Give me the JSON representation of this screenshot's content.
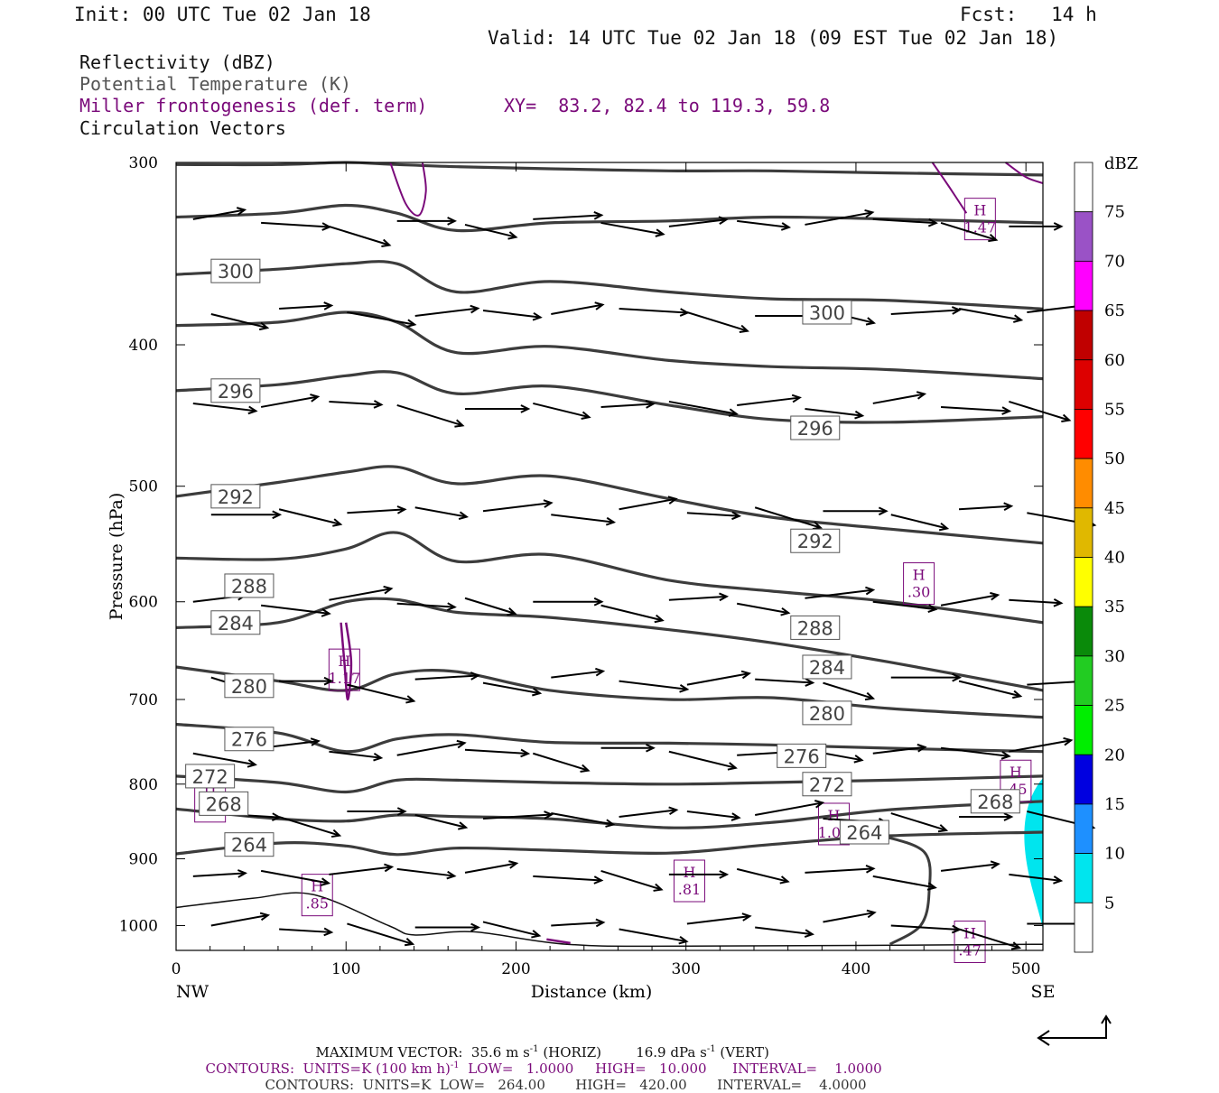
{
  "header": {
    "init": "Init: 00 UTC Tue 02 Jan 18",
    "fcst": "Fcst:   14 h",
    "valid": "Valid: 14 UTC Tue 02 Jan 18 (09 EST Tue 02 Jan 18)",
    "field1": "Reflectivity (dBZ)",
    "field2": "Potential Temperature (K)",
    "field3": "Miller frontogenesis (def. term)",
    "xy": "XY=  83.2, 82.4 to 119.3, 59.8",
    "field4": "Circulation Vectors"
  },
  "chart_data": {
    "type": "cross-section",
    "xlabel": "Distance (km)",
    "ylabel": "Pressure (hPa)",
    "xlim": [
      0,
      510
    ],
    "ylim": [
      1040,
      300
    ],
    "y_scale": "log-pressure",
    "x_ticks": [
      "0",
      "100",
      "200",
      "300",
      "400",
      "500"
    ],
    "y_ticks": [
      "300",
      "400",
      "500",
      "600",
      "700",
      "800",
      "900",
      "1000"
    ],
    "x_ends": [
      "NW",
      "SE"
    ],
    "theta_contour_labels": [
      {
        "value": "300",
        "x": 35,
        "p": 356
      },
      {
        "value": "300",
        "x": 383,
        "p": 380
      },
      {
        "value": "296",
        "x": 35,
        "p": 430
      },
      {
        "value": "296",
        "x": 376,
        "p": 456
      },
      {
        "value": "292",
        "x": 35,
        "p": 508
      },
      {
        "value": "292",
        "x": 376,
        "p": 545
      },
      {
        "value": "288",
        "x": 43,
        "p": 585
      },
      {
        "value": "288",
        "x": 376,
        "p": 625
      },
      {
        "value": "284",
        "x": 35,
        "p": 620
      },
      {
        "value": "284",
        "x": 383,
        "p": 665
      },
      {
        "value": "280",
        "x": 43,
        "p": 685
      },
      {
        "value": "280",
        "x": 383,
        "p": 715
      },
      {
        "value": "276",
        "x": 43,
        "p": 745
      },
      {
        "value": "276",
        "x": 368,
        "p": 765
      },
      {
        "value": "272",
        "x": 20,
        "p": 790
      },
      {
        "value": "272",
        "x": 383,
        "p": 800
      },
      {
        "value": "268",
        "x": 28,
        "p": 825
      },
      {
        "value": "268",
        "x": 482,
        "p": 822
      },
      {
        "value": "264",
        "x": 43,
        "p": 880
      },
      {
        "value": "264",
        "x": 405,
        "p": 863
      }
    ],
    "frontogenesis_maxima": [
      {
        "label": "H",
        "value": "1.47",
        "x": 473,
        "p": 328
      },
      {
        "label": "H",
        "value": ".30",
        "x": 437,
        "p": 583
      },
      {
        "label": "H",
        "value": "1.17",
        "x": 99,
        "p": 668
      },
      {
        "label": "H",
        "value": ".45",
        "x": 494,
        "p": 796
      },
      {
        "label": "H",
        "value": ".40",
        "x": 20,
        "p": 822
      },
      {
        "label": "H",
        "value": "1.09",
        "x": 387,
        "p": 852
      },
      {
        "label": "H",
        "value": ".81",
        "x": 302,
        "p": 932
      },
      {
        "label": "H",
        "value": ".85",
        "x": 83,
        "p": 953
      },
      {
        "label": "H",
        "value": ".47",
        "x": 467,
        "p": 1026
      }
    ],
    "theta_lines": [
      {
        "x": [
          0,
          60,
          100,
          130,
          165,
          220,
          290,
          350,
          420,
          510
        ],
        "p": [
          301,
          301,
          300,
          301,
          302,
          303,
          304,
          304,
          305,
          306
        ]
      },
      {
        "x": [
          0,
          60,
          100,
          130,
          165,
          220,
          290,
          350,
          420,
          510
        ],
        "p": [
          327,
          325,
          321,
          325,
          334,
          330,
          329,
          327,
          328,
          330
        ]
      },
      {
        "x": [
          0,
          60,
          100,
          130,
          165,
          220,
          290,
          350,
          420,
          510
        ],
        "p": [
          358,
          355,
          352,
          352,
          368,
          362,
          368,
          372,
          373,
          378
        ]
      },
      {
        "x": [
          0,
          60,
          100,
          130,
          165,
          220,
          290,
          350,
          420,
          510
        ],
        "p": [
          388,
          386,
          380,
          386,
          405,
          401,
          410,
          414,
          416,
          422
        ]
      },
      {
        "x": [
          0,
          60,
          100,
          130,
          165,
          220,
          290,
          350,
          420,
          510
        ],
        "p": [
          430,
          426,
          420,
          418,
          432,
          427,
          440,
          450,
          452,
          448
        ]
      },
      {
        "x": [
          0,
          60,
          100,
          130,
          165,
          220,
          290,
          350,
          420,
          510
        ],
        "p": [
          508,
          497,
          489,
          485,
          498,
          492,
          510,
          525,
          535,
          547
        ]
      },
      {
        "x": [
          0,
          60,
          100,
          130,
          165,
          220,
          290,
          350,
          420,
          510
        ],
        "p": [
          560,
          561,
          552,
          538,
          563,
          557,
          580,
          590,
          600,
          620
        ]
      },
      {
        "x": [
          0,
          60,
          100,
          130,
          165,
          220,
          290,
          350,
          420,
          510
        ],
        "p": [
          625,
          620,
          600,
          598,
          610,
          615,
          627,
          640,
          660,
          690
        ]
      },
      {
        "x": [
          0,
          60,
          100,
          130,
          165,
          220,
          290,
          350,
          420,
          510
        ],
        "p": [
          665,
          680,
          690,
          672,
          670,
          690,
          700,
          698,
          710,
          720
        ]
      },
      {
        "x": [
          0,
          60,
          100,
          130,
          165,
          220,
          290,
          350,
          420,
          510
        ],
        "p": [
          728,
          738,
          760,
          745,
          740,
          749,
          750,
          752,
          756,
          760
        ]
      },
      {
        "x": [
          0,
          60,
          100,
          130,
          165,
          220,
          290,
          350,
          420,
          510
        ],
        "p": [
          790,
          798,
          810,
          795,
          795,
          798,
          800,
          798,
          795,
          790
        ]
      },
      {
        "x": [
          0,
          60,
          100,
          130,
          165,
          220,
          290,
          350,
          420,
          510
        ],
        "p": [
          832,
          845,
          848,
          840,
          842,
          845,
          857,
          850,
          833,
          822
        ]
      },
      {
        "x": [
          0,
          60,
          100,
          130,
          165,
          220,
          290,
          350,
          420,
          510
        ],
        "p": [
          893,
          878,
          882,
          894,
          885,
          888,
          892,
          880,
          868,
          863
        ]
      }
    ],
    "wind_vectors": {
      "x": [
        10,
        50,
        90,
        130,
        170,
        210,
        250,
        290,
        330,
        370,
        410,
        450,
        490
      ],
      "p": [
        330,
        380,
        440,
        520,
        600,
        680,
        760,
        840,
        920,
        1000
      ],
      "u": 35.6,
      "note_max": "MAXIMUM VECTOR"
    },
    "legend": {
      "unit": "dBZ",
      "levels": [
        "75",
        "70",
        "65",
        "60",
        "55",
        "50",
        "45",
        "40",
        "35",
        "30",
        "25",
        "20",
        "15",
        "10",
        "5"
      ],
      "colors": [
        "#ffffff",
        "#9a52c6",
        "#ff00ff",
        "#c00000",
        "#dd0000",
        "#ff0000",
        "#ff8c00",
        "#e0b800",
        "#ffff00",
        "#0a8a0a",
        "#22cc22",
        "#00ee00",
        "#0000e0",
        "#1e90ff",
        "#00e5ee",
        "#ffffff"
      ]
    },
    "colors": {
      "theta": "#3c3c3c",
      "frontogenesis": "#7a0a7a",
      "reflectivity_5": "#00e5ee"
    }
  },
  "footer": {
    "line1a": "MAXIMUM VECTOR:  35.6 m s",
    "line1a_sup": "-1",
    "line1b": "(HORIZ)",
    "line1c": "16.9 dPa s",
    "line1c_sup": "-1",
    "line1d": "(VERT)",
    "line2a": "CONTOURS:  UNITS=K (100 km h)",
    "line2a_sup": "-1",
    "line2b": "LOW=   1.0000",
    "line2c": "HIGH=   10.000",
    "line2d": "INTERVAL=    1.0000",
    "line3a": "CONTOURS:  UNITS=K  LOW=   264.00",
    "line3b": "HIGH=   420.00",
    "line3c": "INTERVAL=    4.0000"
  }
}
